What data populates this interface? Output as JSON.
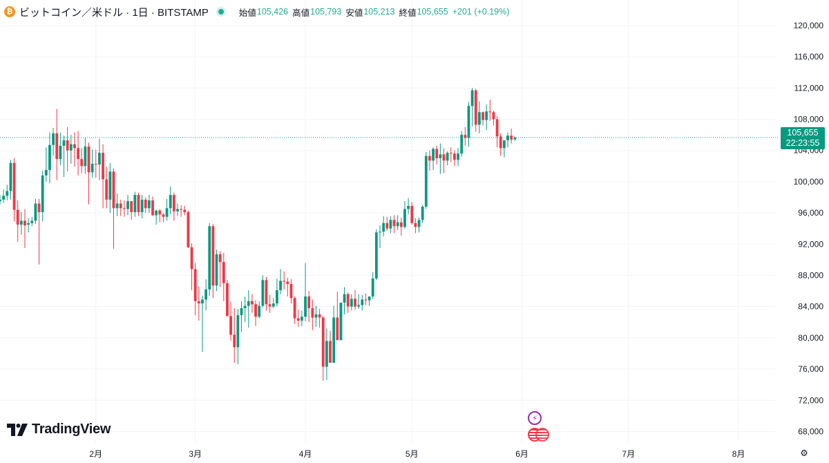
{
  "header": {
    "coin_icon": "bitcoin-icon",
    "symbol": "ビットコイン／米ドル · 1日 · BITSTAMP",
    "open_label": "始値",
    "open": "105,426",
    "high_label": "高値",
    "high": "105,793",
    "low_label": "安値",
    "low": "105,213",
    "close_label": "終値",
    "close": "105,655",
    "change": "+201 (+0.19%)"
  },
  "last_price": {
    "value": "105,655",
    "countdown": "22:23:55"
  },
  "logo": {
    "text": "TradingView"
  },
  "events": [
    {
      "icon": "lightning-icon",
      "color": "#9c27b0"
    },
    {
      "icon": "us-flag-icon",
      "color": "#f23645"
    }
  ],
  "colors": {
    "up": "#089981",
    "down": "#f23645",
    "grid": "#f0f3fa",
    "axis_text": "#131722"
  },
  "chart_data": {
    "type": "candlestick",
    "y_axis": {
      "ylim": [
        66800,
        121500
      ],
      "ticks": [
        68000,
        72000,
        76000,
        80000,
        84000,
        88000,
        92000,
        96000,
        100000,
        104000,
        108000,
        112000,
        116000,
        120000
      ],
      "tick_labels": [
        "68,000",
        "72,000",
        "76,000",
        "80,000",
        "84,000",
        "88,000",
        "92,000",
        "96,000",
        "100,000",
        "104,000",
        "108,000",
        "112,000",
        "116,000",
        "120,000"
      ]
    },
    "x_axis": {
      "ticks": [
        {
          "label": "2月",
          "index": 27
        },
        {
          "label": "3月",
          "index": 55
        },
        {
          "label": "4月",
          "index": 86
        },
        {
          "label": "5月",
          "index": 116
        },
        {
          "label": "6月",
          "index": 147
        },
        {
          "label": "7月",
          "index": 177
        },
        {
          "label": "8月",
          "index": 208
        }
      ]
    },
    "last_price": 105655,
    "candles": [
      [
        97500,
        98300,
        97100,
        97700
      ],
      [
        97700,
        99000,
        97300,
        98200
      ],
      [
        98200,
        99600,
        97600,
        98800
      ],
      [
        98800,
        102800,
        97700,
        102400
      ],
      [
        102400,
        103000,
        94900,
        96400
      ],
      [
        96400,
        97600,
        92300,
        94500
      ],
      [
        94500,
        96100,
        93200,
        95000
      ],
      [
        95000,
        96500,
        91500,
        94400
      ],
      [
        94500,
        95300,
        93500,
        94700
      ],
      [
        94700,
        95500,
        94300,
        95000
      ],
      [
        95000,
        97800,
        94600,
        97200
      ],
      [
        97200,
        97800,
        89400,
        96100
      ],
      [
        96100,
        101400,
        94900,
        100800
      ],
      [
        100800,
        104400,
        100000,
        101500
      ],
      [
        101500,
        106300,
        99800,
        104700
      ],
      [
        104700,
        106900,
        103300,
        106200
      ],
      [
        106200,
        109300,
        100200,
        102900
      ],
      [
        102900,
        106300,
        102100,
        104600
      ],
      [
        104600,
        105900,
        100600,
        105300
      ],
      [
        105300,
        107000,
        101300,
        104000
      ],
      [
        104000,
        106000,
        102300,
        104800
      ],
      [
        104800,
        106300,
        101900,
        104300
      ],
      [
        104300,
        106500,
        100800,
        102900
      ],
      [
        102900,
        104300,
        101100,
        102000
      ],
      [
        102000,
        105600,
        101000,
        104500
      ],
      [
        104500,
        105000,
        97100,
        101200
      ],
      [
        101200,
        104100,
        100500,
        102300
      ],
      [
        102300,
        104100,
        100500,
        102200
      ],
      [
        102200,
        105500,
        100200,
        103700
      ],
      [
        103700,
        104800,
        96600,
        100300
      ],
      [
        100300,
        101900,
        96600,
        97700
      ],
      [
        97700,
        102400,
        96000,
        101300
      ],
      [
        101300,
        101700,
        91400,
        96600
      ],
      [
        96600,
        98500,
        95600,
        97200
      ],
      [
        97200,
        97700,
        95600,
        96600
      ],
      [
        96600,
        97600,
        95500,
        96500
      ],
      [
        96500,
        98300,
        95700,
        97500
      ],
      [
        97500,
        97500,
        95100,
        96100
      ],
      [
        96100,
        98700,
        95500,
        98300
      ],
      [
        98300,
        98600,
        95600,
        96100
      ],
      [
        96100,
        98300,
        95300,
        97700
      ],
      [
        97700,
        98000,
        96000,
        96600
      ],
      [
        96600,
        98300,
        96000,
        97600
      ],
      [
        97600,
        98100,
        95600,
        95700
      ],
      [
        95700,
        96400,
        94500,
        96300
      ],
      [
        96300,
        96500,
        94800,
        95800
      ],
      [
        95800,
        96000,
        94800,
        95500
      ],
      [
        95500,
        97800,
        95000,
        96600
      ],
      [
        96600,
        99400,
        95800,
        98300
      ],
      [
        98300,
        98600,
        95000,
        96200
      ],
      [
        96200,
        97200,
        95600,
        96500
      ],
      [
        96500,
        97000,
        95500,
        96400
      ],
      [
        96400,
        96900,
        95700,
        96100
      ],
      [
        96100,
        96300,
        91500,
        91600
      ],
      [
        91600,
        92100,
        86100,
        88800
      ],
      [
        88800,
        89600,
        82900,
        84700
      ],
      [
        84700,
        86600,
        82200,
        84400
      ],
      [
        84400,
        85400,
        78200,
        84900
      ],
      [
        84900,
        87500,
        83500,
        86200
      ],
      [
        86200,
        94700,
        85400,
        94300
      ],
      [
        94300,
        94600,
        85100,
        86700
      ],
      [
        86700,
        91300,
        86000,
        90700
      ],
      [
        90700,
        91100,
        86500,
        89700
      ],
      [
        89700,
        90900,
        84700,
        87000
      ],
      [
        87000,
        87400,
        82700,
        82800
      ],
      [
        82800,
        84600,
        79600,
        80400
      ],
      [
        80400,
        83800,
        76800,
        78800
      ],
      [
        78800,
        83700,
        76600,
        82900
      ],
      [
        82900,
        84700,
        80800,
        83800
      ],
      [
        83800,
        85300,
        82000,
        84100
      ],
      [
        84100,
        86100,
        81300,
        84700
      ],
      [
        84700,
        85600,
        83200,
        84300
      ],
      [
        84300,
        84800,
        81500,
        82700
      ],
      [
        82700,
        84700,
        82500,
        84100
      ],
      [
        84100,
        88000,
        83900,
        87400
      ],
      [
        87400,
        87800,
        83500,
        84300
      ],
      [
        84300,
        85500,
        83200,
        84000
      ],
      [
        84000,
        85100,
        83800,
        84400
      ],
      [
        84400,
        87600,
        84000,
        86100
      ],
      [
        86100,
        88800,
        85600,
        87300
      ],
      [
        87300,
        88500,
        86200,
        87200
      ],
      [
        87200,
        87700,
        85300,
        86900
      ],
      [
        86900,
        87500,
        84400,
        85100
      ],
      [
        85100,
        85300,
        81800,
        82500
      ],
      [
        82500,
        83600,
        81400,
        82200
      ],
      [
        82200,
        83500,
        81500,
        82700
      ],
      [
        82700,
        89600,
        82100,
        85300
      ],
      [
        85300,
        86000,
        82000,
        83800
      ],
      [
        83800,
        84900,
        81000,
        82600
      ],
      [
        82600,
        84100,
        81400,
        83000
      ],
      [
        83000,
        83700,
        81300,
        82600
      ],
      [
        82600,
        82800,
        74500,
        76300
      ],
      [
        76300,
        81200,
        74600,
        79600
      ],
      [
        79600,
        80900,
        77000,
        76800
      ],
      [
        76800,
        84100,
        76800,
        82600
      ],
      [
        82600,
        85900,
        79800,
        79700
      ],
      [
        79700,
        84500,
        79700,
        84500
      ],
      [
        84500,
        86500,
        83000,
        85600
      ],
      [
        85600,
        85800,
        83200,
        84000
      ],
      [
        84000,
        85600,
        83500,
        85000
      ],
      [
        85000,
        86100,
        83600,
        84000
      ],
      [
        84000,
        85600,
        83700,
        84200
      ],
      [
        84200,
        85500,
        83500,
        84900
      ],
      [
        84900,
        85700,
        84200,
        84800
      ],
      [
        84800,
        85200,
        84100,
        85300
      ],
      [
        85300,
        88400,
        85000,
        87600
      ],
      [
        87600,
        93900,
        87400,
        93500
      ],
      [
        93500,
        94400,
        91500,
        93600
      ],
      [
        93600,
        95600,
        93000,
        94700
      ],
      [
        94700,
        95500,
        93700,
        94000
      ],
      [
        94000,
        95600,
        93400,
        95100
      ],
      [
        95100,
        95700,
        93400,
        94300
      ],
      [
        94300,
        95700,
        93800,
        94800
      ],
      [
        94800,
        95400,
        93100,
        94200
      ],
      [
        94200,
        97500,
        94000,
        96500
      ],
      [
        96500,
        97900,
        95800,
        96900
      ],
      [
        96900,
        97400,
        94500,
        94700
      ],
      [
        94700,
        95300,
        93400,
        94200
      ],
      [
        94200,
        95400,
        93500,
        95100
      ],
      [
        95100,
        97000,
        94700,
        96800
      ],
      [
        96800,
        103800,
        96500,
        103300
      ],
      [
        103300,
        104000,
        101400,
        102700
      ],
      [
        102700,
        104400,
        101500,
        104200
      ],
      [
        104200,
        104600,
        102200,
        103000
      ],
      [
        103000,
        104900,
        101000,
        103500
      ],
      [
        103500,
        104300,
        101100,
        102700
      ],
      [
        102700,
        103900,
        102100,
        103700
      ],
      [
        103700,
        104400,
        102500,
        103600
      ],
      [
        103600,
        104000,
        102000,
        102800
      ],
      [
        102800,
        104300,
        102000,
        103600
      ],
      [
        103600,
        106500,
        103200,
        106000
      ],
      [
        106000,
        107000,
        104600,
        105600
      ],
      [
        105600,
        110200,
        104500,
        109700
      ],
      [
        109700,
        112000,
        107100,
        111700
      ],
      [
        111700,
        111900,
        106400,
        107300
      ],
      [
        107300,
        110300,
        106200,
        108900
      ],
      [
        108900,
        109000,
        107200,
        107900
      ],
      [
        107900,
        109900,
        106600,
        109000
      ],
      [
        109000,
        110500,
        107800,
        108900
      ],
      [
        108900,
        109100,
        107200,
        108000
      ],
      [
        108000,
        108400,
        104400,
        105800
      ],
      [
        105800,
        106200,
        103300,
        104300
      ],
      [
        104300,
        104900,
        103100,
        105300
      ],
      [
        105300,
        106300,
        104400,
        105900
      ],
      [
        105900,
        106800,
        104900,
        105400
      ],
      [
        105426,
        105793,
        105213,
        105655
      ]
    ]
  }
}
